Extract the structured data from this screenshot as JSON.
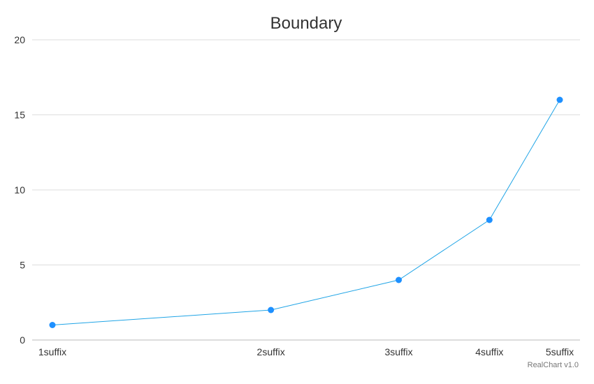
{
  "chart_data": {
    "type": "line",
    "title": "Boundary",
    "xlabel": "",
    "ylabel": "",
    "x_scale": "log",
    "x": [
      1,
      2,
      3,
      4,
      5
    ],
    "categories": [
      "1suffix",
      "2suffix",
      "3suffix",
      "4suffix",
      "5suffix"
    ],
    "y_ticks": [
      0,
      5,
      10,
      15,
      20
    ],
    "ylim": [
      0,
      20
    ],
    "grid": true,
    "legend": "none",
    "series": [
      {
        "values": [
          1,
          2,
          4,
          8,
          16
        ]
      }
    ]
  },
  "colors": {
    "series": "#1e90ff",
    "line": "#1fa4e6",
    "grid": "#dddddd",
    "axis": "#bbbbbb"
  },
  "credit": "RealChart v1.0"
}
